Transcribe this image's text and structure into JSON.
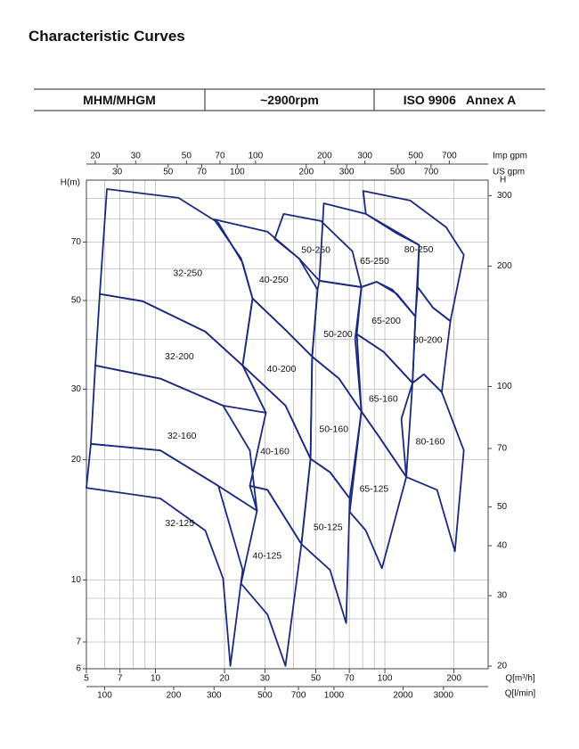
{
  "header": {
    "title": "Characteristic Curves",
    "cells": [
      "MHM/MHGM",
      "~2900rpm",
      "ISO 9906   Annex A"
    ]
  },
  "chart_data": {
    "type": "region",
    "x_label": "Q[m³/h]",
    "y_label": "H(m)",
    "xscale": "log",
    "yscale": "log",
    "xlim": [
      5,
      282
    ],
    "ylim": [
      6,
      100
    ],
    "xticks": [
      5,
      7,
      10,
      20,
      30,
      50,
      70,
      100,
      200
    ],
    "yticks": [
      6,
      7,
      10,
      20,
      30,
      50,
      70
    ],
    "xgrid": [
      5,
      6,
      7,
      8,
      9,
      10,
      20,
      30,
      40,
      50,
      60,
      70,
      80,
      90,
      100,
      200
    ],
    "ygrid": [
      6,
      7,
      8,
      9,
      10,
      20,
      30,
      40,
      50,
      60,
      70,
      80,
      90
    ],
    "grid": true,
    "color": "#1a2a7e",
    "top_axes": [
      {
        "label": "Imp gpm",
        "lim": [
          18.3,
          1034
        ],
        "ticks": [
          20,
          30,
          50,
          70,
          100,
          200,
          300,
          500,
          700
        ]
      },
      {
        "label": "US gpm",
        "lim": [
          22.0,
          1242
        ],
        "ticks": [
          30,
          50,
          70,
          100,
          200,
          300,
          500,
          700
        ]
      }
    ],
    "bottom_axis2": {
      "label": "Q[l/min]",
      "lim": [
        83.3,
        4700
      ],
      "ticks": [
        100,
        200,
        300,
        500,
        700,
        1000,
        2000,
        3000
      ]
    },
    "y2": {
      "label": "H",
      "lim": [
        19.7,
        328
      ],
      "ticks": [
        20,
        30,
        40,
        50,
        70,
        100,
        200,
        300
      ]
    },
    "series": [
      {
        "name": "32-250",
        "q": [
          6.14,
          12.6,
          18.8,
          24.0,
          26.5,
          24.0,
          16.5,
          8.79,
          5.72
        ],
        "h": [
          95.0,
          90.3,
          78.2,
          62.1,
          50.6,
          34.4,
          41.8,
          49.8,
          51.9
        ]
      },
      {
        "name": "32-200",
        "q": [
          5.72,
          8.79,
          16.5,
          24.0,
          30.3,
          19.7,
          10.5,
          5.47
        ],
        "h": [
          51.9,
          49.8,
          41.8,
          34.4,
          26.2,
          27.3,
          31.9,
          34.4
        ]
      },
      {
        "name": "32-160",
        "q": [
          5.47,
          10.5,
          19.7,
          25.8,
          27.7,
          18.8,
          10.5,
          5.23
        ],
        "h": [
          34.4,
          31.9,
          27.3,
          21.1,
          14.9,
          17.2,
          21.1,
          21.9
        ]
      },
      {
        "name": "32-125",
        "q": [
          5.23,
          10.5,
          18.8,
          24.0,
          21.2,
          19.7,
          16.5,
          10.5,
          5.0
        ],
        "h": [
          21.9,
          21.1,
          17.2,
          10.6,
          6.1,
          10.1,
          13.3,
          16.0,
          17.0
        ]
      },
      {
        "name": "40-250",
        "q": [
          18.0,
          30.8,
          42.2,
          50.9,
          48.2,
          36.9,
          26.5,
          23.6
        ],
        "h": [
          79.8,
          74.3,
          63.7,
          53.2,
          36.2,
          42.2,
          50.6,
          63.7
        ]
      },
      {
        "name": "40-200",
        "q": [
          26.5,
          36.9,
          48.2,
          47.4,
          36.9,
          24.0
        ],
        "h": [
          50.6,
          42.2,
          36.2,
          20.1,
          27.3,
          34.4
        ]
      },
      {
        "name": "40-160",
        "q": [
          24.0,
          36.9,
          47.4,
          43.3,
          30.8,
          25.8,
          30.3
        ],
        "h": [
          34.4,
          27.3,
          20.1,
          12.3,
          16.8,
          17.2,
          26.2
        ]
      },
      {
        "name": "40-125",
        "q": [
          25.8,
          30.8,
          43.3,
          36.9,
          30.8,
          23.6,
          27.7
        ],
        "h": [
          17.2,
          16.8,
          12.3,
          6.1,
          8.2,
          9.8,
          14.9
        ]
      },
      {
        "name": "50-250",
        "q": [
          36.2,
          52.7,
          72.2,
          79.0,
          51.8,
          42.2,
          33.1
        ],
        "h": [
          82.3,
          79.0,
          66.4,
          54.0,
          56.0,
          63.7,
          71.3
        ]
      },
      {
        "name": "50-200",
        "q": [
          51.8,
          79.0,
          74.2,
          79.0,
          63.1,
          48.2,
          50.9
        ],
        "h": [
          56.0,
          54.0,
          40.1,
          26.4,
          31.9,
          36.2,
          53.2
        ]
      },
      {
        "name": "50-160",
        "q": [
          48.2,
          63.1,
          79.0,
          70.3,
          57.7,
          47.4
        ],
        "h": [
          36.2,
          31.9,
          26.4,
          16.0,
          18.6,
          20.1
        ]
      },
      {
        "name": "50-125",
        "q": [
          47.4,
          57.7,
          70.3,
          67.8,
          57.7,
          43.3
        ],
        "h": [
          20.1,
          18.6,
          16.0,
          7.8,
          10.6,
          12.3
        ]
      },
      {
        "name": "65-250",
        "q": [
          54.2,
          82.6,
          113,
          141,
          136,
          108,
          92.0,
          79.0,
          51.8
        ],
        "h": [
          87.5,
          82.3,
          73.5,
          68.8,
          45.6,
          53.2,
          55.7,
          54.0,
          56.0
        ]
      },
      {
        "name": "65-200",
        "q": [
          79.0,
          92.0,
          113,
          136,
          132,
          98.8,
          75.5
        ],
        "h": [
          54.0,
          55.7,
          51.9,
          45.6,
          31.1,
          37.2,
          41.2
        ]
      },
      {
        "name": "65-160",
        "q": [
          75.5,
          98.8,
          132,
          124,
          94.5,
          79.0
        ],
        "h": [
          41.2,
          37.2,
          31.1,
          18.1,
          22.8,
          26.4
        ]
      },
      {
        "name": "65-125",
        "q": [
          79.0,
          94.5,
          124,
          97.1,
          82.6,
          70.3
        ],
        "h": [
          26.4,
          22.8,
          18.1,
          10.7,
          13.3,
          14.8
        ]
      },
      {
        "name": "80-250",
        "q": [
          80.4,
          129,
          185,
          221,
          193,
          162,
          139,
          141,
          82.6
        ],
        "h": [
          94.0,
          88.9,
          76.2,
          65.0,
          44.4,
          48.0,
          54.0,
          68.8,
          82.3
        ]
      },
      {
        "name": "80-200",
        "q": [
          139,
          162,
          193,
          177,
          148,
          132,
          136
        ],
        "h": [
          54.0,
          48.0,
          44.4,
          29.5,
          32.7,
          31.1,
          45.6
        ]
      },
      {
        "name": "80-160",
        "q": [
          132,
          148,
          177,
          221,
          202,
          169,
          124,
          118
        ],
        "h": [
          31.1,
          32.7,
          29.5,
          21.1,
          11.8,
          16.8,
          18.1,
          25.3
        ]
      }
    ]
  }
}
